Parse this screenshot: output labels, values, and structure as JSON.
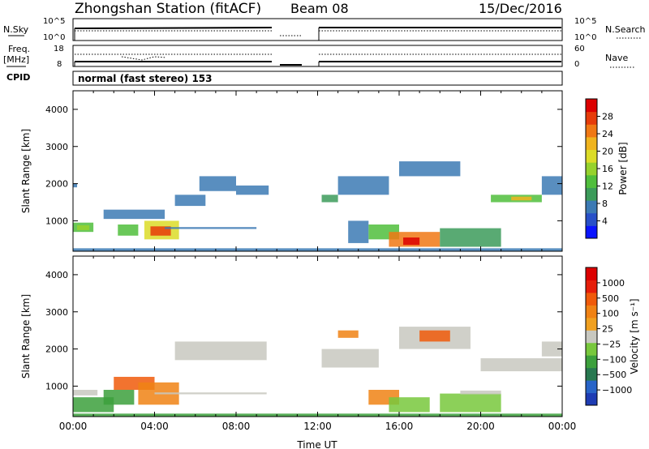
{
  "header": {
    "title": "Zhongshan Station (fitACF)",
    "beam": "Beam 08",
    "date": "15/Dec/2016"
  },
  "left_labels": {
    "nsky": "N.Sky",
    "freq_top": "Freq.",
    "freq_unit": "[MHz]",
    "cpid": "CPID"
  },
  "right_labels": {
    "nsearch": "N.Search",
    "nave": "Nave"
  },
  "ticks": {
    "nsky_top": "10^5",
    "nsky_bot": "10^0",
    "freq_top": "18",
    "freq_bot": "8",
    "nave_top": "60",
    "nave_bot": "0",
    "nsearch_top": "10^5",
    "nsearch_bot": "10^0"
  },
  "cpid_text": "normal (fast stereo) 153",
  "chart_data": [
    {
      "type": "heatmap",
      "title": "",
      "ylabel": "Slant Range [km]",
      "xlabel": "",
      "ylim": [
        180,
        4500
      ],
      "xlim": [
        0,
        24
      ],
      "y_ticks": [
        "1000",
        "2000",
        "3000",
        "4000"
      ],
      "colorbar": {
        "label": "Power [dB]",
        "ticks": [
          "4",
          "8",
          "12",
          "16",
          "20",
          "24",
          "28"
        ],
        "range": [
          0,
          30
        ],
        "colors": [
          "#0a14ff",
          "#2850c8",
          "#3c7ab4",
          "#3c9b5a",
          "#50be3c",
          "#96d22d",
          "#dcdc28",
          "#f0b41e",
          "#f07814",
          "#e63c0a",
          "#dc0000"
        ]
      },
      "regions": [
        {
          "t0": 0.0,
          "t1": 1.0,
          "r0": 700,
          "r1": 950,
          "level": 12
        },
        {
          "t0": 0.2,
          "t1": 0.8,
          "r0": 750,
          "r1": 880,
          "level": 16
        },
        {
          "t0": 0.0,
          "t1": 0.2,
          "r0": 1900,
          "r1": 2000,
          "level": 8
        },
        {
          "t0": 1.5,
          "t1": 4.5,
          "r0": 1050,
          "r1": 1300,
          "level": 8
        },
        {
          "t0": 2.2,
          "t1": 3.2,
          "r0": 600,
          "r1": 900,
          "level": 12
        },
        {
          "t0": 3.5,
          "t1": 5.2,
          "r0": 500,
          "r1": 1000,
          "level": 18
        },
        {
          "t0": 3.8,
          "t1": 4.8,
          "r0": 600,
          "r1": 850,
          "level": 26
        },
        {
          "t0": 4.5,
          "t1": 9.0,
          "r0": 780,
          "r1": 830,
          "level": 8
        },
        {
          "t0": 5.0,
          "t1": 6.5,
          "r0": 1400,
          "r1": 1700,
          "level": 8
        },
        {
          "t0": 6.2,
          "t1": 8.0,
          "r0": 1800,
          "r1": 2200,
          "level": 8
        },
        {
          "t0": 8.0,
          "t1": 9.6,
          "r0": 1700,
          "r1": 1950,
          "level": 8
        },
        {
          "t0": 12.2,
          "t1": 13.0,
          "r0": 1500,
          "r1": 1700,
          "level": 10
        },
        {
          "t0": 13.0,
          "t1": 15.5,
          "r0": 1700,
          "r1": 2200,
          "level": 8
        },
        {
          "t0": 13.5,
          "t1": 14.5,
          "r0": 400,
          "r1": 1000,
          "level": 8
        },
        {
          "t0": 14.5,
          "t1": 16.0,
          "r0": 500,
          "r1": 900,
          "level": 12
        },
        {
          "t0": 15.5,
          "t1": 18.0,
          "r0": 300,
          "r1": 700,
          "level": 22
        },
        {
          "t0": 16.2,
          "t1": 17.0,
          "r0": 350,
          "r1": 550,
          "level": 28
        },
        {
          "t0": 16.0,
          "t1": 19.0,
          "r0": 2200,
          "r1": 2600,
          "level": 8
        },
        {
          "t0": 18.0,
          "t1": 21.0,
          "r0": 300,
          "r1": 800,
          "level": 10
        },
        {
          "t0": 20.5,
          "t1": 23.0,
          "r0": 1500,
          "r1": 1700,
          "level": 12
        },
        {
          "t0": 21.5,
          "t1": 22.5,
          "r0": 1550,
          "r1": 1650,
          "level": 20
        },
        {
          "t0": 23.0,
          "t1": 24.0,
          "r0": 1700,
          "r1": 2200,
          "level": 8
        },
        {
          "t0": 0.0,
          "t1": 24.0,
          "r0": 180,
          "r1": 260,
          "level": 6
        }
      ]
    },
    {
      "type": "heatmap",
      "title": "",
      "ylabel": "Slant Range [km]",
      "xlabel": "Time UT",
      "ylim": [
        180,
        4500
      ],
      "xlim": [
        0,
        24
      ],
      "y_ticks": [
        "1000",
        "2000",
        "3000",
        "4000"
      ],
      "x_ticks": [
        "00:00",
        "04:00",
        "08:00",
        "12:00",
        "16:00",
        "20:00",
        "00:00"
      ],
      "colorbar": {
        "label": "Velocity [m s⁻¹]",
        "ticks": [
          "1000",
          "500",
          "100",
          "25",
          "−25",
          "−100",
          "−500",
          "−1000"
        ],
        "colors": [
          "#1e3cb4",
          "#2864c8",
          "#287850",
          "#3ca03c",
          "#78c83c",
          "#c8c8c0",
          "#f0a020",
          "#f08214",
          "#f05a0a",
          "#e61e0a",
          "#dc0000"
        ]
      },
      "regions": [
        {
          "t0": 0.0,
          "t1": 1.2,
          "r0": 750,
          "r1": 900,
          "level": 5
        },
        {
          "t0": 0.0,
          "t1": 2.0,
          "r0": 300,
          "r1": 700,
          "level": 3
        },
        {
          "t0": 1.5,
          "t1": 3.0,
          "r0": 500,
          "r1": 900,
          "level": 3
        },
        {
          "t0": 2.0,
          "t1": 4.0,
          "r0": 900,
          "r1": 1250,
          "level": 8
        },
        {
          "t0": 3.2,
          "t1": 5.2,
          "r0": 500,
          "r1": 1100,
          "level": 7
        },
        {
          "t0": 4.0,
          "t1": 9.5,
          "r0": 780,
          "r1": 830,
          "level": 5
        },
        {
          "t0": 5.0,
          "t1": 9.5,
          "r0": 1700,
          "r1": 2200,
          "level": 5
        },
        {
          "t0": 12.2,
          "t1": 15.0,
          "r0": 1500,
          "r1": 2000,
          "level": 5
        },
        {
          "t0": 13.0,
          "t1": 14.0,
          "r0": 2300,
          "r1": 2500,
          "level": 7
        },
        {
          "t0": 14.5,
          "t1": 16.0,
          "r0": 500,
          "r1": 900,
          "level": 7
        },
        {
          "t0": 15.5,
          "t1": 17.5,
          "r0": 300,
          "r1": 700,
          "level": 4
        },
        {
          "t0": 16.0,
          "t1": 19.5,
          "r0": 2000,
          "r1": 2600,
          "level": 5
        },
        {
          "t0": 17.0,
          "t1": 18.5,
          "r0": 2200,
          "r1": 2500,
          "level": 8
        },
        {
          "t0": 18.0,
          "t1": 21.0,
          "r0": 300,
          "r1": 800,
          "level": 4
        },
        {
          "t0": 19.0,
          "t1": 21.0,
          "r0": 780,
          "r1": 880,
          "level": 5
        },
        {
          "t0": 20.0,
          "t1": 24.0,
          "r0": 1400,
          "r1": 1750,
          "level": 5
        },
        {
          "t0": 23.0,
          "t1": 24.0,
          "r0": 1800,
          "r1": 2200,
          "level": 5
        },
        {
          "t0": 0.0,
          "t1": 24.0,
          "r0": 180,
          "r1": 260,
          "level": 3
        }
      ]
    }
  ]
}
